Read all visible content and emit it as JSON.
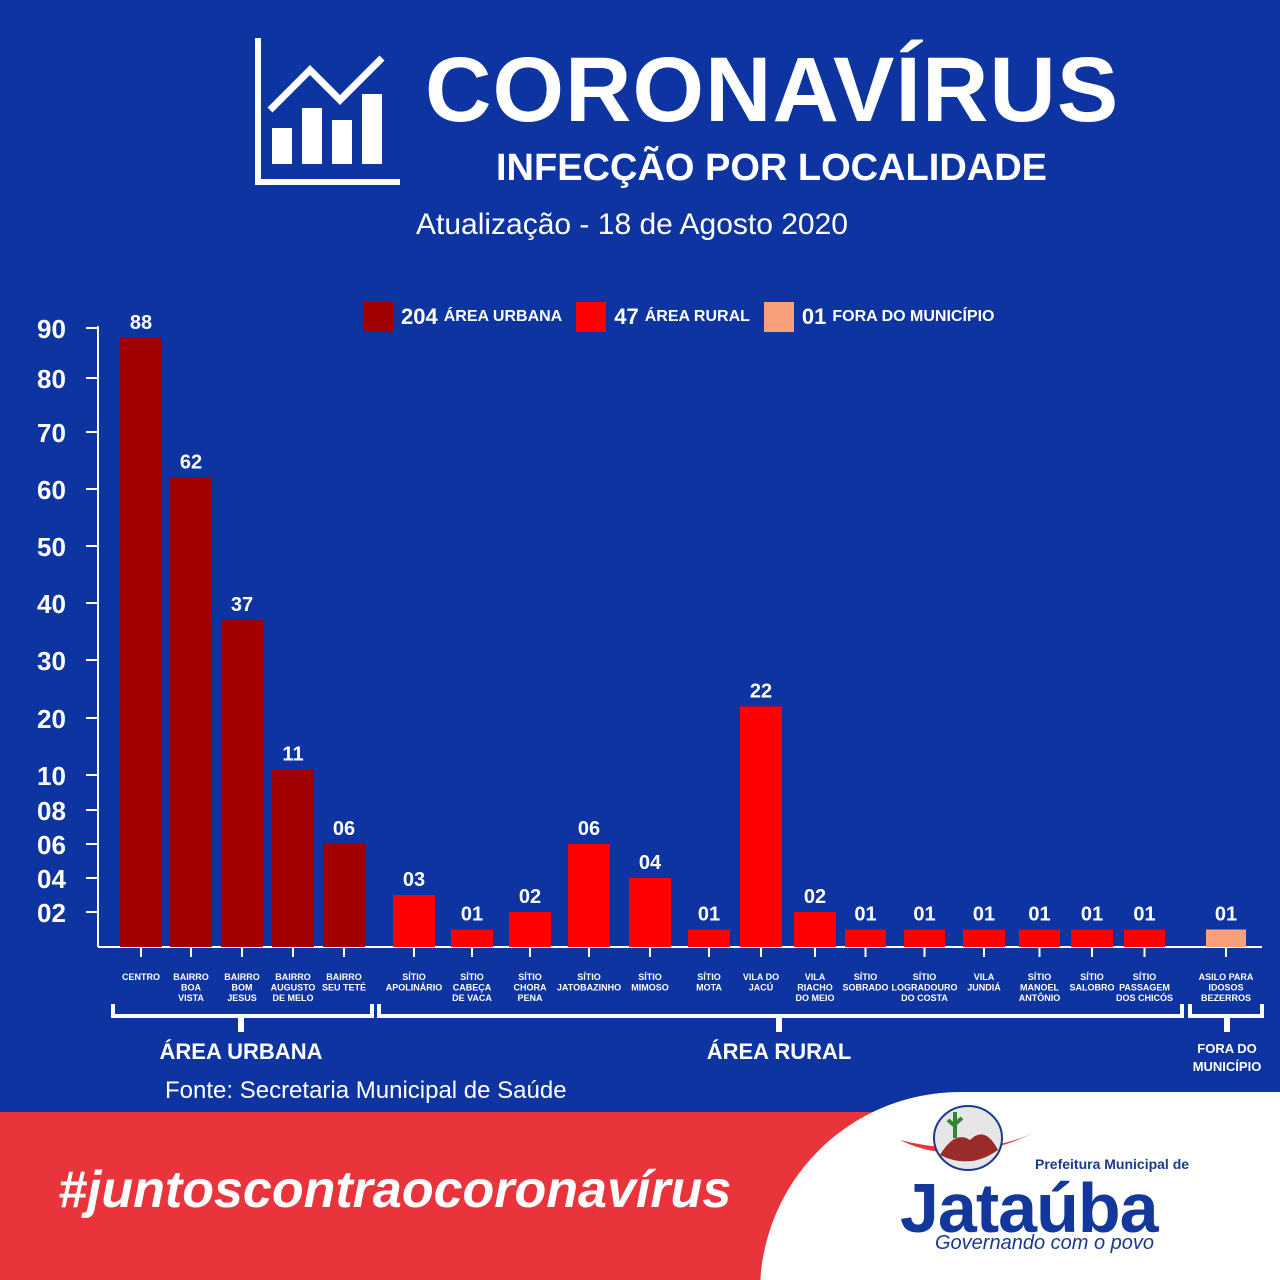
{
  "header": {
    "title": "CORONAVÍRUS",
    "subtitle": "INFECÇÃO POR LOCALIDADE",
    "update": "Atualização - 18 de Agosto 2020"
  },
  "legend": [
    {
      "count": "204",
      "label": "ÁREA URBANA",
      "color": "#a00000"
    },
    {
      "count": "47",
      "label": "ÁREA RURAL",
      "color": "#ff0000"
    },
    {
      "count": "01",
      "label": "FORA DO MUNICÍPIO",
      "color": "#f8a07a"
    }
  ],
  "chart_data": {
    "type": "bar",
    "title": "INFECÇÃO POR LOCALIDADE",
    "ylim": [
      0,
      90
    ],
    "y_ticks": [
      "90",
      "80",
      "70",
      "60",
      "50",
      "40",
      "30",
      "20",
      "10",
      "08",
      "06",
      "04",
      "02"
    ],
    "categories": [
      {
        "name": [
          "CENTRO"
        ],
        "value": 88,
        "label": "88",
        "group": "urban"
      },
      {
        "name": [
          "BAIRRO",
          "BOA",
          "VISTA"
        ],
        "value": 62,
        "label": "62",
        "group": "urban"
      },
      {
        "name": [
          "BAIRRO",
          "BOM",
          "JESUS"
        ],
        "value": 37,
        "label": "37",
        "group": "urban"
      },
      {
        "name": [
          "BAIRRO",
          "AUGUSTO",
          "DE MELO"
        ],
        "value": 11,
        "label": "11",
        "group": "urban"
      },
      {
        "name": [
          "BAIRRO",
          "SEU TETÉ"
        ],
        "value": 6,
        "label": "06",
        "group": "urban"
      },
      {
        "name": [
          "SÍTIO",
          "APOLINÁRIO"
        ],
        "value": 3,
        "label": "03",
        "group": "rural"
      },
      {
        "name": [
          "SÍTIO",
          "CABEÇA",
          "DE VACA"
        ],
        "value": 1,
        "label": "01",
        "group": "rural"
      },
      {
        "name": [
          "SÍTIO",
          "CHORA",
          "PENA"
        ],
        "value": 2,
        "label": "02",
        "group": "rural"
      },
      {
        "name": [
          "SÍTIO",
          "JATOBAZINHO"
        ],
        "value": 6,
        "label": "06",
        "group": "rural"
      },
      {
        "name": [
          "SÍTIO",
          "MIMOSO"
        ],
        "value": 4,
        "label": "04",
        "group": "rural"
      },
      {
        "name": [
          "SÍTIO",
          "MOTA"
        ],
        "value": 1,
        "label": "01",
        "group": "rural"
      },
      {
        "name": [
          "VILA DO",
          "JACÚ"
        ],
        "value": 22,
        "label": "22",
        "group": "rural"
      },
      {
        "name": [
          "VILA",
          "RIACHO",
          "DO MEIO"
        ],
        "value": 2,
        "label": "02",
        "group": "rural"
      },
      {
        "name": [
          "SÍTIO",
          "SOBRADO"
        ],
        "value": 1,
        "label": "01",
        "group": "rural"
      },
      {
        "name": [
          "SÍTIO",
          "LOGRADOURO",
          "DO COSTA"
        ],
        "value": 1,
        "label": "01",
        "group": "rural"
      },
      {
        "name": [
          "VILA",
          "JUNDIÁ"
        ],
        "value": 1,
        "label": "01",
        "group": "rural"
      },
      {
        "name": [
          "SÍTIO",
          "MANOEL",
          "ANTÔNIO"
        ],
        "value": 1,
        "label": "01",
        "group": "rural"
      },
      {
        "name": [
          "SÍTIO",
          "SALOBRO"
        ],
        "value": 1,
        "label": "01",
        "group": "rural"
      },
      {
        "name": [
          "SÍTIO",
          "PASSAGEM",
          "DOS CHICÓS"
        ],
        "value": 1,
        "label": "01",
        "group": "rural"
      },
      {
        "name": [
          "ASILO PARA",
          "IDOSOS",
          "BEZERROS"
        ],
        "value": 1,
        "label": "01",
        "group": "outside"
      }
    ],
    "groups": [
      {
        "key": "urban",
        "label": [
          "ÁREA URBANA"
        ],
        "color": "#a00000"
      },
      {
        "key": "rural",
        "label": [
          "ÁREA RURAL"
        ],
        "color": "#ff0000"
      },
      {
        "key": "outside",
        "label": [
          "FORA DO",
          "MUNICÍPIO"
        ],
        "color": "#f8a07a"
      }
    ]
  },
  "source": "Fonte: Secretaria Municipal de Saúde",
  "footer": {
    "hashtag": "#juntoscontraocoronavírus",
    "prefeitura": "Prefeitura Municipal de",
    "city": "Jataúba",
    "slogan": "Governando com o povo"
  }
}
